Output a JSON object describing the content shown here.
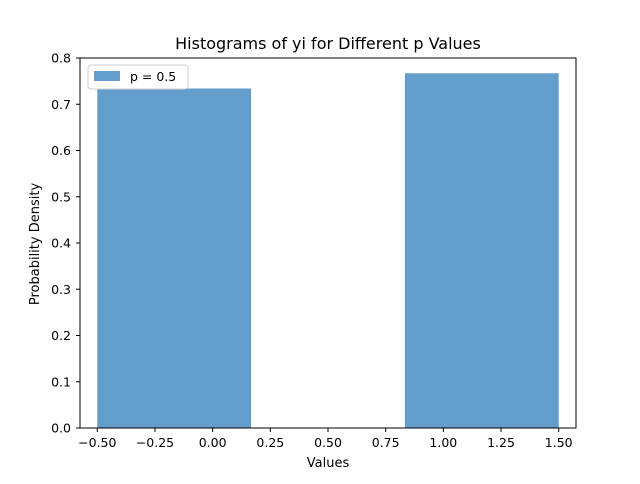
{
  "chart_data": {
    "type": "bar",
    "title": "Histograms of yi for Different p Values",
    "xlabel": "Values",
    "ylabel": "Probability Density",
    "xlim": [
      -0.575,
      1.575
    ],
    "ylim": [
      0,
      0.8
    ],
    "xticks": [
      "−0.50",
      "−0.25",
      "0.00",
      "0.25",
      "0.50",
      "0.75",
      "1.00",
      "1.25",
      "1.50"
    ],
    "xtick_values": [
      -0.5,
      -0.25,
      0.0,
      0.25,
      0.5,
      0.75,
      1.0,
      1.25,
      1.5
    ],
    "yticks": [
      "0.0",
      "0.1",
      "0.2",
      "0.3",
      "0.4",
      "0.5",
      "0.6",
      "0.7",
      "0.8"
    ],
    "ytick_values": [
      0.0,
      0.1,
      0.2,
      0.3,
      0.4,
      0.5,
      0.6,
      0.7,
      0.8
    ],
    "grid": false,
    "legend_position": "top-left",
    "series": [
      {
        "name": "p = 0.5",
        "color": "#4c8fc4",
        "opacity": 0.87,
        "bins": [
          {
            "x0": -0.5,
            "x1": 0.1667,
            "value": 0.734
          },
          {
            "x0": 0.1667,
            "x1": 0.8333,
            "value": 0.0
          },
          {
            "x0": 0.8333,
            "x1": 1.5,
            "value": 0.767
          }
        ]
      }
    ]
  }
}
